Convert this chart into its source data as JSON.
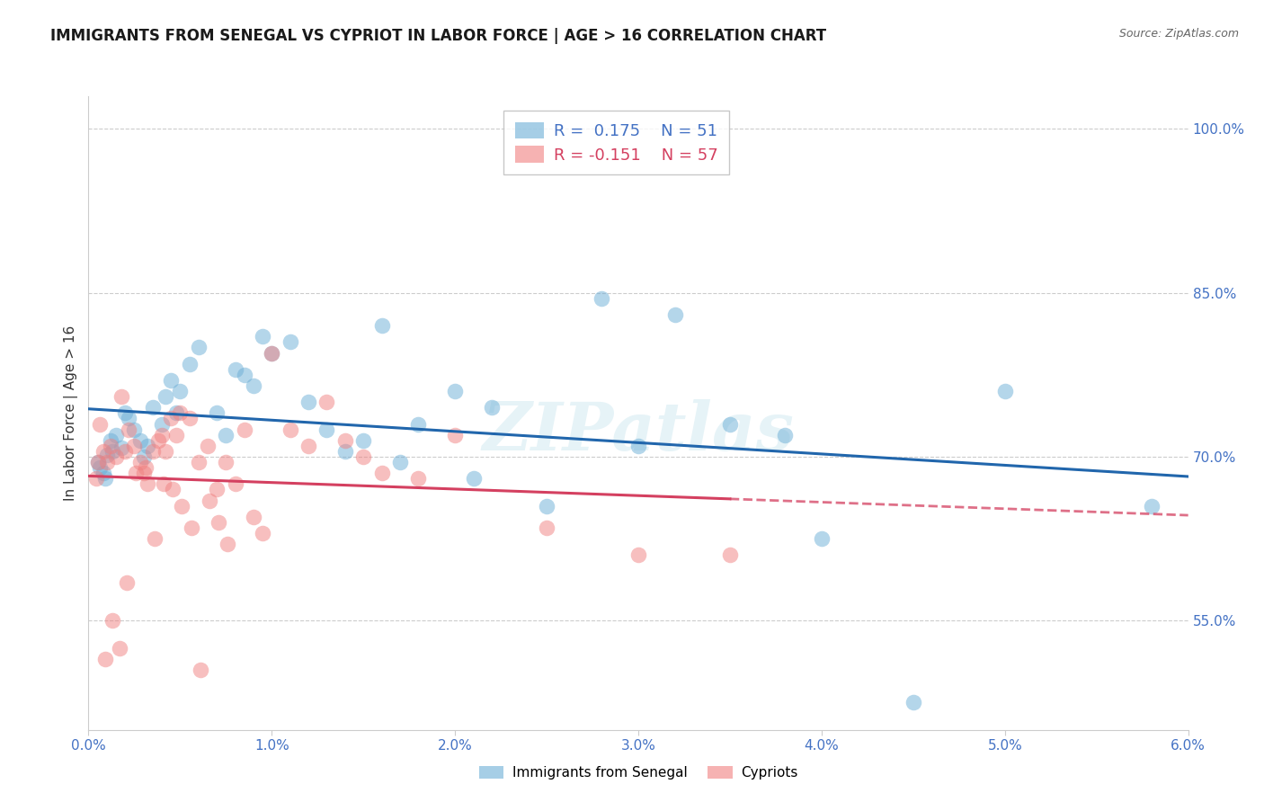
{
  "title": "IMMIGRANTS FROM SENEGAL VS CYPRIOT IN LABOR FORCE | AGE > 16 CORRELATION CHART",
  "source": "Source: ZipAtlas.com",
  "ylabel": "In Labor Force | Age > 16",
  "right_yticks": [
    55.0,
    70.0,
    85.0,
    100.0
  ],
  "xlim": [
    0.0,
    0.06
  ],
  "ylim": [
    45.0,
    103.0
  ],
  "watermark": "ZIPatlas",
  "legend_r1": "R =  0.175",
  "legend_n1": "N = 51",
  "legend_r2": "R = -0.151",
  "legend_n2": "N = 57",
  "senegal_color": "#6baed6",
  "cypriot_color": "#f08080",
  "trend_senegal_color": "#2166ac",
  "trend_cypriot_color": "#d44060",
  "senegal_points_x": [
    0.0005,
    0.0008,
    0.001,
    0.0012,
    0.0015,
    0.0018,
    0.002,
    0.0022,
    0.0025,
    0.003,
    0.0032,
    0.0035,
    0.004,
    0.0042,
    0.0045,
    0.005,
    0.0055,
    0.006,
    0.007,
    0.0075,
    0.008,
    0.009,
    0.0095,
    0.01,
    0.011,
    0.012,
    0.013,
    0.014,
    0.015,
    0.016,
    0.018,
    0.02,
    0.022,
    0.025,
    0.028,
    0.032,
    0.035,
    0.038,
    0.04,
    0.045,
    0.05,
    0.058,
    0.0006,
    0.0009,
    0.0013,
    0.0028,
    0.0048,
    0.0085,
    0.017,
    0.021,
    0.03
  ],
  "senegal_points_y": [
    69.5,
    68.5,
    70.2,
    71.5,
    72.0,
    70.8,
    74.0,
    73.5,
    72.5,
    70.0,
    71.0,
    74.5,
    73.0,
    75.5,
    77.0,
    76.0,
    78.5,
    80.0,
    74.0,
    72.0,
    78.0,
    76.5,
    81.0,
    79.5,
    80.5,
    75.0,
    72.5,
    70.5,
    71.5,
    82.0,
    73.0,
    76.0,
    74.5,
    65.5,
    84.5,
    83.0,
    73.0,
    72.0,
    62.5,
    47.5,
    76.0,
    65.5,
    69.0,
    68.0,
    70.5,
    71.5,
    74.0,
    77.5,
    69.5,
    68.0,
    71.0
  ],
  "cypriot_points_x": [
    0.0004,
    0.0006,
    0.0008,
    0.001,
    0.0012,
    0.0015,
    0.0018,
    0.002,
    0.0022,
    0.0025,
    0.0028,
    0.003,
    0.0032,
    0.0035,
    0.0038,
    0.004,
    0.0042,
    0.0045,
    0.0048,
    0.005,
    0.0055,
    0.006,
    0.0065,
    0.007,
    0.0075,
    0.008,
    0.009,
    0.0095,
    0.01,
    0.011,
    0.012,
    0.013,
    0.014,
    0.015,
    0.016,
    0.018,
    0.02,
    0.025,
    0.03,
    0.035,
    0.0005,
    0.0009,
    0.0013,
    0.0017,
    0.0021,
    0.0026,
    0.0031,
    0.0036,
    0.0041,
    0.0046,
    0.0051,
    0.0056,
    0.0061,
    0.0066,
    0.0071,
    0.0076,
    0.0085
  ],
  "cypriot_points_y": [
    68.0,
    73.0,
    70.5,
    69.5,
    71.0,
    70.0,
    75.5,
    70.5,
    72.5,
    71.0,
    69.5,
    68.5,
    67.5,
    70.5,
    71.5,
    72.0,
    70.5,
    73.5,
    72.0,
    74.0,
    73.5,
    69.5,
    71.0,
    67.0,
    69.5,
    67.5,
    64.5,
    63.0,
    79.5,
    72.5,
    71.0,
    75.0,
    71.5,
    70.0,
    68.5,
    68.0,
    72.0,
    63.5,
    61.0,
    61.0,
    69.5,
    51.5,
    55.0,
    52.5,
    58.5,
    68.5,
    69.0,
    62.5,
    67.5,
    67.0,
    65.5,
    63.5,
    50.5,
    66.0,
    64.0,
    62.0,
    72.5
  ]
}
